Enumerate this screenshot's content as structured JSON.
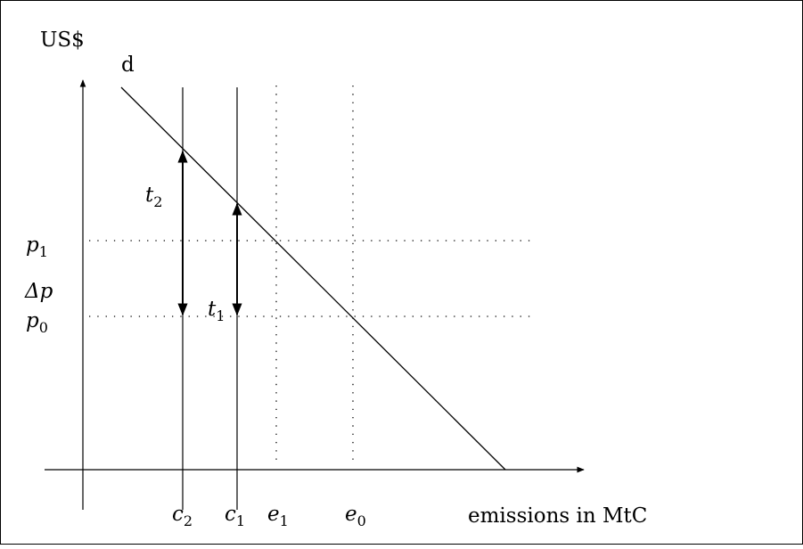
{
  "labels": {
    "y_axis": "US$",
    "x_axis": "emissions in MtC",
    "demand_curve": "d"
  },
  "marks": [
    {
      "key": "p1",
      "symbol": "p",
      "subscript": "1"
    },
    {
      "key": "dp",
      "symbol": "Δp",
      "subscript": ""
    },
    {
      "key": "p0",
      "symbol": "p",
      "subscript": "0"
    },
    {
      "key": "t2",
      "symbol": "t",
      "subscript": "2"
    },
    {
      "key": "t1",
      "symbol": "t",
      "subscript": "1"
    },
    {
      "key": "c2",
      "symbol": "c",
      "subscript": "2"
    },
    {
      "key": "c1",
      "symbol": "c",
      "subscript": "1"
    },
    {
      "key": "e1",
      "symbol": "e",
      "subscript": "1"
    },
    {
      "key": "e0",
      "symbol": "e",
      "subscript": "0"
    }
  ]
}
